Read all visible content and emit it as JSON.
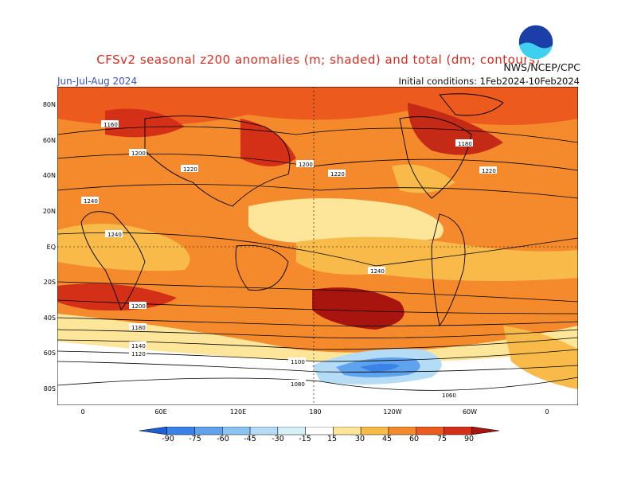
{
  "header": {
    "title": "CFSv2 seasonal z200 anomalies (m; shaded) and total (dm; contours)",
    "season": "Jun-Jul-Aug 2024",
    "initial_conditions": "Initial conditions: 1Feb2024-10Feb2024",
    "agency": "NWS/NCEP/CPC",
    "logo_text": "NOAA"
  },
  "map": {
    "lat_labels": [
      "80N",
      "60N",
      "40N",
      "20N",
      "EQ",
      "20S",
      "40S",
      "60S",
      "80S"
    ],
    "lon_labels": [
      "0",
      "60E",
      "120E",
      "180",
      "120W",
      "60W",
      "0"
    ],
    "contour_labels": [
      "1160",
      "1180",
      "1200",
      "1220",
      "1240",
      "1140",
      "1120",
      "1100",
      "1080",
      "1060"
    ]
  },
  "colorbar": {
    "labels": [
      "-90",
      "-75",
      "-60",
      "-45",
      "-30",
      "-15",
      "15",
      "30",
      "45",
      "60",
      "75",
      "90"
    ],
    "colors": [
      "#1c5fd6",
      "#3a82e8",
      "#5fa2ee",
      "#8cc3f3",
      "#b5dcf7",
      "#d6f0f8",
      "#ffffff",
      "#fde59a",
      "#f8bb4a",
      "#f48a2c",
      "#ec5a1e",
      "#d43018",
      "#a8140e"
    ]
  }
}
